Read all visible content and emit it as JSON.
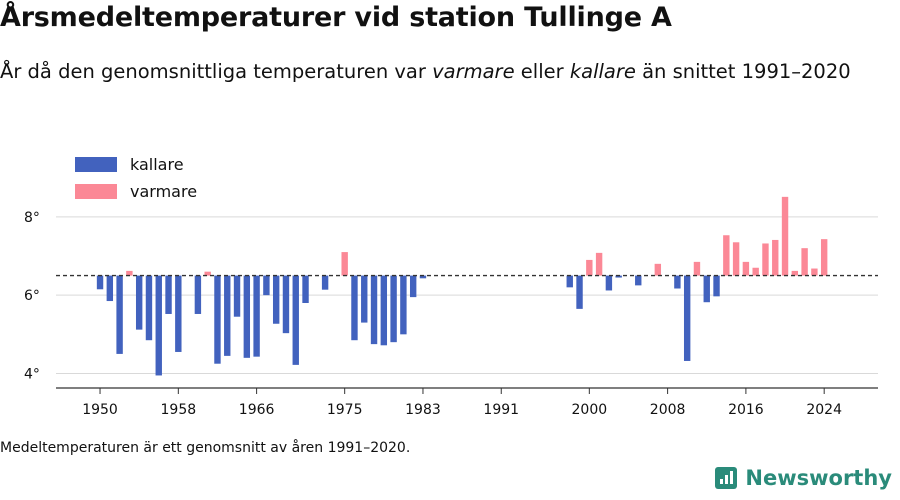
{
  "title": "Årsmedeltemperaturer vid station Tullinge A",
  "subtitle": {
    "part1": "År då den genomsnittliga temperaturen var ",
    "warm_word": "varmare",
    "part2": " eller ",
    "cold_word": "kallare",
    "part3": " än snittet 1991–2020"
  },
  "footnote": "Medeltemperaturen är ett genomsnitt av åren 1991–2020.",
  "brand": "Newsworthy",
  "colors": {
    "cold": "#4262be",
    "warm": "#fb8896",
    "grid": "#d9d9d9",
    "axis": "#333333",
    "reference": "#333333"
  },
  "chart_data": {
    "type": "bar",
    "title": "Årsmedeltemperaturer vid station Tullinge A",
    "baseline": 6.5,
    "ylim": [
      3.4,
      9.4
    ],
    "yticks": [
      4,
      6,
      8
    ],
    "ytick_labels": [
      "4°",
      "6°",
      "8°"
    ],
    "xlim": [
      1945.5,
      2029.5
    ],
    "xticks": [
      1950,
      1958,
      1966,
      1975,
      1983,
      1991,
      2000,
      2008,
      2016,
      2024
    ],
    "xtick_labels": [
      "1950",
      "1958",
      "1966",
      "1975",
      "1983",
      "1991",
      "2000",
      "2008",
      "2016",
      "2024"
    ],
    "legend": {
      "position": "top-left",
      "entries": [
        {
          "label": "kallare",
          "color": "#4262be"
        },
        {
          "label": "varmare",
          "color": "#fb8896"
        }
      ]
    },
    "x": [
      1950,
      1951,
      1952,
      1953,
      1954,
      1955,
      1956,
      1957,
      1958,
      1960,
      1961,
      1962,
      1963,
      1964,
      1965,
      1966,
      1967,
      1968,
      1969,
      1970,
      1971,
      1973,
      1975,
      1976,
      1977,
      1978,
      1979,
      1980,
      1981,
      1982,
      1983,
      1998,
      1999,
      2000,
      2001,
      2002,
      2003,
      2005,
      2007,
      2009,
      2010,
      2011,
      2012,
      2013,
      2014,
      2015,
      2016,
      2017,
      2018,
      2019,
      2020,
      2021,
      2022,
      2023,
      2024
    ],
    "values": [
      6.15,
      5.85,
      4.5,
      6.62,
      5.12,
      4.85,
      3.95,
      5.52,
      4.55,
      5.52,
      6.6,
      4.25,
      4.45,
      5.45,
      4.4,
      4.43,
      6.0,
      5.27,
      5.03,
      4.22,
      5.8,
      6.14,
      7.1,
      4.85,
      5.3,
      4.75,
      4.72,
      4.8,
      5.0,
      5.95,
      6.43,
      6.2,
      5.65,
      6.9,
      7.08,
      6.12,
      6.45,
      6.25,
      6.8,
      6.17,
      4.32,
      6.85,
      5.82,
      5.97,
      7.53,
      7.35,
      6.85,
      6.7,
      7.32,
      7.41,
      8.51,
      6.62,
      7.2,
      6.68,
      7.43
    ]
  }
}
